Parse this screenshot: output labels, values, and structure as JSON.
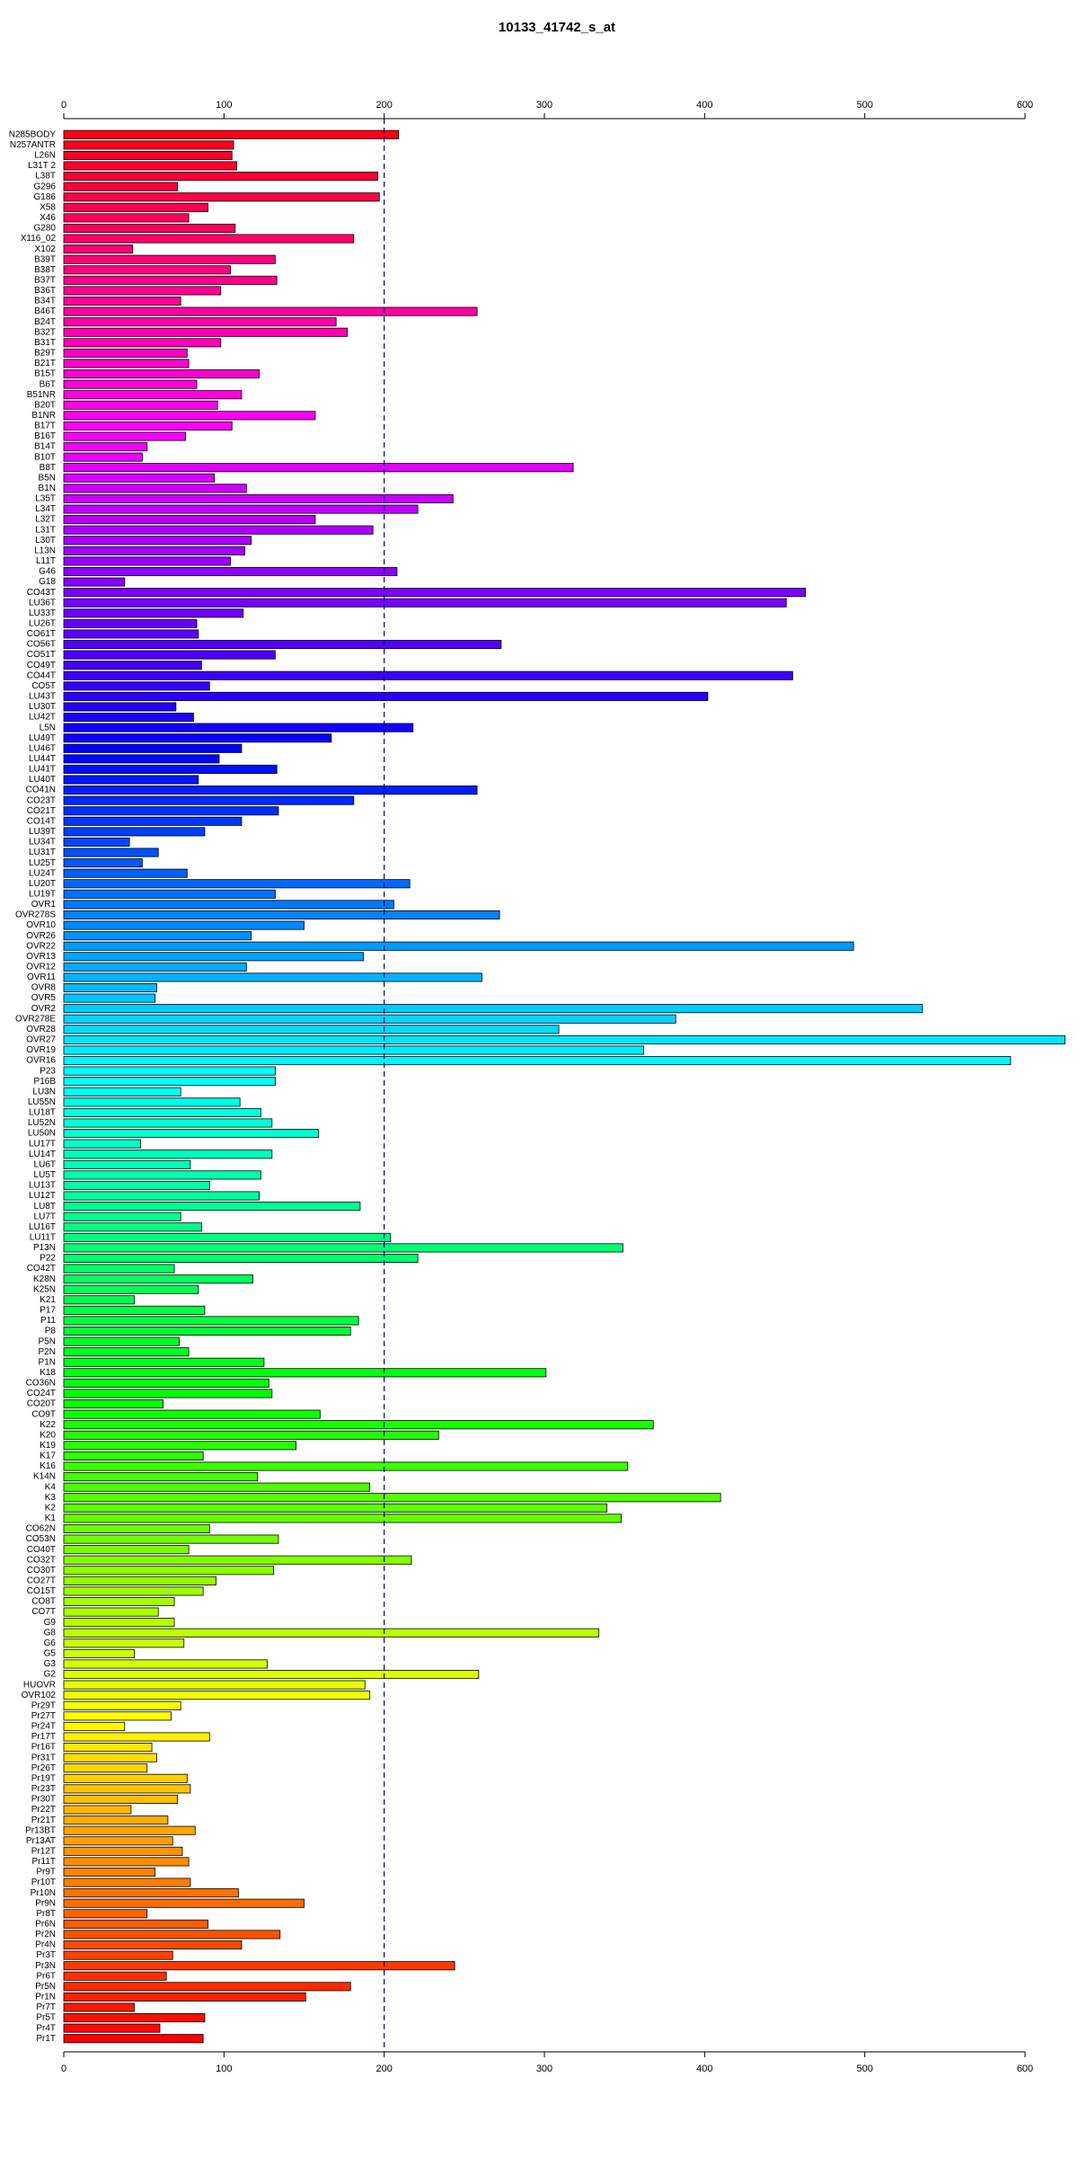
{
  "chart_data": {
    "type": "hbar",
    "title": "10133_41742_s_at",
    "categories": [
      "N285BODY",
      "N257ANTR",
      "L26N",
      "L31T 2",
      "L38T",
      "G296",
      "G186",
      "X58",
      "X46",
      "G280",
      "X116_02",
      "X102",
      "B39T",
      "B38T",
      "B37T",
      "B36T",
      "B34T",
      "B46T",
      "B24T",
      "B32T",
      "B31T",
      "B29T",
      "B21T",
      "B15T",
      "B6T",
      "B51NR",
      "B20T",
      "B1NR",
      "B17T",
      "B16T",
      "B14T",
      "B10T",
      "B8T",
      "B5N",
      "B1N",
      "L35T",
      "L34T",
      "L32T",
      "L31T",
      "L30T",
      "L13N",
      "L11T",
      "G46",
      "G18",
      "CO43T",
      "LU36T",
      "LU33T",
      "LU26T",
      "CO61T",
      "CO56T",
      "CO51T",
      "CO49T",
      "CO44T",
      "CO5T",
      "LU43T",
      "LU30T",
      "LU42T",
      "L5N",
      "LU49T",
      "LU46T",
      "LU44T",
      "LU41T",
      "LU40T",
      "CO41N",
      "CO23T",
      "CO21T",
      "CO14T",
      "LU39T",
      "LU34T",
      "LU31T",
      "LU25T",
      "LU24T",
      "LU20T",
      "LU19T",
      "OVR1",
      "OVR278S",
      "OVR10",
      "OVR26",
      "OVR22",
      "OVR13",
      "OVR12",
      "OVR11",
      "OVR8",
      "OVR5",
      "OVR2",
      "OVR278E",
      "OVR28",
      "OVR27",
      "OVR19",
      "OVR16",
      "P23",
      "P16B",
      "LU3N",
      "LU55N",
      "LU18T",
      "LU52N",
      "LU50N",
      "LU17T",
      "LU14T",
      "LU6T",
      "LU5T",
      "LU13T",
      "LU12T",
      "LU8T",
      "LU7T",
      "LU16T",
      "LU11T",
      "P13N",
      "P22",
      "CO42T",
      "K28N",
      "K25N",
      "K21",
      "P17",
      "P11",
      "P8",
      "P5N",
      "P2N",
      "P1N",
      "K18",
      "CO36N",
      "CO24T",
      "CO20T",
      "CO9T",
      "K22",
      "K20",
      "K19",
      "K17",
      "K16",
      "K14N",
      "K4",
      "K3",
      "K2",
      "K1",
      "CO62N",
      "CO53N",
      "CO40T",
      "CO32T",
      "CO30T",
      "CO27T",
      "CO15T",
      "CO8T",
      "CO7T",
      "G9",
      "G8",
      "G6",
      "G5",
      "G3",
      "G2",
      "HUOVR",
      "OVR102",
      "Pr29T",
      "Pr27T",
      "Pr24T",
      "Pr17T",
      "Pr16T",
      "Pr31T",
      "Pr26T",
      "Pr19T",
      "Pr23T",
      "Pr30T",
      "Pr22T",
      "Pr21T",
      "Pr13BT",
      "Pr13AT",
      "Pr12T",
      "Pr11T",
      "Pr9T",
      "Pr10T",
      "Pr10N",
      "Pr9N",
      "Pr8T",
      "Pr6N",
      "Pr2N",
      "Pr4N",
      "Pr3T",
      "Pr3N",
      "Pr6T",
      "Pr5N",
      "Pr1N",
      "Pr7T",
      "Pr5T",
      "Pr4T",
      "Pr1T"
    ],
    "values": [
      209,
      106,
      105,
      108,
      196,
      71,
      197,
      90,
      78,
      107,
      181,
      43,
      132,
      104,
      133,
      98,
      73,
      258,
      170,
      177,
      98,
      77,
      78,
      122,
      83,
      111,
      96,
      157,
      105,
      76,
      52,
      49,
      318,
      94,
      114,
      243,
      221,
      157,
      193,
      117,
      113,
      104,
      208,
      38,
      463,
      451,
      112,
      83,
      84,
      273,
      132,
      86,
      455,
      91,
      402,
      70,
      81,
      218,
      167,
      111,
      97,
      133,
      84,
      258,
      181,
      134,
      111,
      88,
      41,
      59,
      49,
      77,
      216,
      132,
      206,
      272,
      150,
      117,
      493,
      187,
      114,
      261,
      58,
      57,
      536,
      382,
      309,
      625,
      362,
      591,
      132,
      132,
      73,
      110,
      123,
      130,
      159,
      48,
      130,
      79,
      123,
      91,
      122,
      185,
      73,
      86,
      204,
      349,
      221,
      69,
      118,
      84,
      44,
      88,
      184,
      179,
      72,
      78,
      125,
      301,
      128,
      130,
      62,
      160,
      368,
      234,
      145,
      87,
      352,
      121,
      191,
      410,
      339,
      348,
      91,
      134,
      78,
      217,
      131,
      95,
      87,
      69,
      59,
      69,
      334,
      75,
      44,
      127,
      259,
      188,
      191,
      73,
      67,
      38,
      91,
      55,
      58,
      52,
      77,
      79,
      71,
      42,
      65,
      82,
      68,
      74,
      78,
      57,
      79,
      109,
      150,
      52,
      90,
      135,
      111,
      68,
      244,
      64,
      179,
      151,
      44,
      88,
      60,
      87
    ],
    "palette": "rainbow",
    "bar_edge_color": "#000000",
    "xlim": [
      0,
      600
    ],
    "xticks": [
      0,
      100,
      200,
      300,
      400,
      500,
      600
    ],
    "reference_line": 200,
    "reference_line_color": "#00008b"
  }
}
